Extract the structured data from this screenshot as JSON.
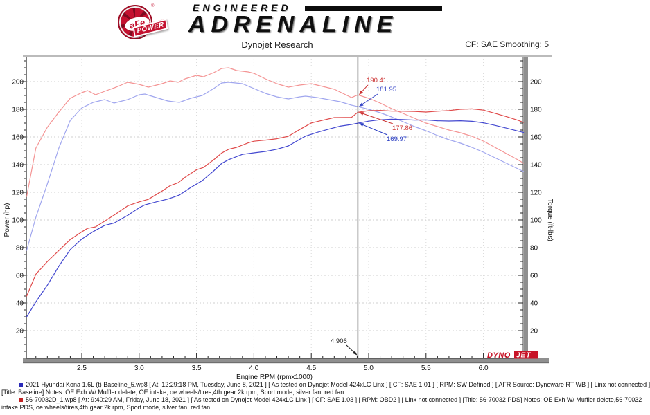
{
  "header": {
    "logo": {
      "circle_text": "aFe",
      "registered": "®",
      "banner": "POWER",
      "word1": "ENGINEERED",
      "word2": "ADRENALINE"
    },
    "report_title": "Dynojet Research",
    "cf_smoothing": "CF: SAE Smoothing: 5"
  },
  "chart_data": {
    "type": "line",
    "title": "Dynojet Research",
    "xlabel": "Engine RPM (rpmx1000)",
    "ylabel_left": "Power (hp)",
    "ylabel_right": "Torque (ft-lbs)",
    "xlim": [
      2.02,
      6.35
    ],
    "ylim": [
      0,
      217
    ],
    "x_major_ticks": [
      2.5,
      3.0,
      3.5,
      4.0,
      4.5,
      5.0,
      5.5,
      6.0
    ],
    "x_minor_step": 0.1,
    "y_major_ticks": [
      20,
      40,
      60,
      80,
      100,
      120,
      140,
      160,
      180,
      200
    ],
    "y_minor_step": 5,
    "grid": true,
    "legend_position": "none",
    "cursor": {
      "rpm": 4.906,
      "label": "4.906"
    },
    "annotations": [
      {
        "label": "190.41",
        "value": 190.41,
        "series": "torque-56-70032",
        "color": "#cc3333",
        "text_x": 529,
        "text_y": 119,
        "arrow_from": [
          531,
          123
        ]
      },
      {
        "label": "181.95",
        "value": 181.95,
        "series": "torque-baseline",
        "color": "#3a49c8",
        "text_x": 543,
        "text_y": 132,
        "arrow_from": [
          545,
          136
        ]
      },
      {
        "label": "177.86",
        "value": 177.86,
        "series": "power-56-70032",
        "color": "#cc3333",
        "text_x": 566,
        "text_y": 188,
        "arrow_from": [
          567,
          179
        ]
      },
      {
        "label": "169.97",
        "value": 169.97,
        "series": "power-baseline",
        "color": "#2438c0",
        "text_x": 558,
        "text_y": 204,
        "arrow_from": [
          559,
          195
        ]
      }
    ],
    "series": [
      {
        "name": "torque-56-70032",
        "run": "56-70032 PDS",
        "unit": "ft-lbs",
        "color": "#f49494",
        "points": [
          [
            2.02,
            117
          ],
          [
            2.1,
            152
          ],
          [
            2.2,
            167
          ],
          [
            2.3,
            178
          ],
          [
            2.4,
            188
          ],
          [
            2.5,
            192
          ],
          [
            2.55,
            193.5
          ],
          [
            2.62,
            190.5
          ],
          [
            2.7,
            193
          ],
          [
            2.8,
            196
          ],
          [
            2.9,
            199.5
          ],
          [
            3.0,
            198
          ],
          [
            3.08,
            196
          ],
          [
            3.2,
            198.5
          ],
          [
            3.27,
            200.5
          ],
          [
            3.34,
            199.5
          ],
          [
            3.4,
            202
          ],
          [
            3.5,
            204.5
          ],
          [
            3.56,
            203.5
          ],
          [
            3.65,
            206.5
          ],
          [
            3.72,
            209.5
          ],
          [
            3.78,
            210
          ],
          [
            3.85,
            208
          ],
          [
            3.95,
            207
          ],
          [
            4.0,
            206
          ],
          [
            4.1,
            202
          ],
          [
            4.2,
            198.5
          ],
          [
            4.3,
            196
          ],
          [
            4.4,
            197.5
          ],
          [
            4.5,
            198.5
          ],
          [
            4.6,
            196.5
          ],
          [
            4.7,
            194.5
          ],
          [
            4.8,
            190.5
          ],
          [
            4.85,
            188.5
          ],
          [
            4.906,
            190.41
          ],
          [
            5.0,
            188
          ],
          [
            5.1,
            184.5
          ],
          [
            5.2,
            180.5
          ],
          [
            5.3,
            177
          ],
          [
            5.4,
            173.5
          ],
          [
            5.5,
            170
          ],
          [
            5.6,
            167.5
          ],
          [
            5.7,
            165
          ],
          [
            5.8,
            163
          ],
          [
            5.9,
            160.5
          ],
          [
            6.0,
            157
          ],
          [
            6.1,
            152.5
          ],
          [
            6.2,
            148
          ],
          [
            6.3,
            143.5
          ],
          [
            6.35,
            141
          ]
        ]
      },
      {
        "name": "torque-baseline",
        "run": "Baseline",
        "unit": "ft-lbs",
        "color": "#a0a6ee",
        "points": [
          [
            2.02,
            78
          ],
          [
            2.1,
            102
          ],
          [
            2.2,
            126
          ],
          [
            2.3,
            152
          ],
          [
            2.4,
            172
          ],
          [
            2.5,
            181
          ],
          [
            2.6,
            185
          ],
          [
            2.7,
            187
          ],
          [
            2.78,
            184.5
          ],
          [
            2.9,
            187
          ],
          [
            3.0,
            190.5
          ],
          [
            3.05,
            191
          ],
          [
            3.15,
            188.5
          ],
          [
            3.25,
            186
          ],
          [
            3.35,
            185
          ],
          [
            3.45,
            188
          ],
          [
            3.55,
            190
          ],
          [
            3.65,
            195
          ],
          [
            3.72,
            199
          ],
          [
            3.78,
            199.5
          ],
          [
            3.9,
            198.5
          ],
          [
            4.0,
            195
          ],
          [
            4.1,
            191.5
          ],
          [
            4.2,
            189
          ],
          [
            4.3,
            187.5
          ],
          [
            4.4,
            189
          ],
          [
            4.45,
            189.5
          ],
          [
            4.55,
            188.5
          ],
          [
            4.65,
            187
          ],
          [
            4.75,
            185.5
          ],
          [
            4.85,
            183
          ],
          [
            4.906,
            181.95
          ],
          [
            5.0,
            180
          ],
          [
            5.1,
            177.5
          ],
          [
            5.2,
            174.5
          ],
          [
            5.3,
            171
          ],
          [
            5.4,
            167.5
          ],
          [
            5.5,
            164.5
          ],
          [
            5.6,
            161
          ],
          [
            5.7,
            158
          ],
          [
            5.8,
            155.5
          ],
          [
            5.9,
            152.5
          ],
          [
            6.0,
            149
          ],
          [
            6.1,
            145
          ],
          [
            6.2,
            141
          ],
          [
            6.3,
            137
          ],
          [
            6.35,
            135
          ]
        ]
      },
      {
        "name": "power-56-70032",
        "run": "56-70032 PDS",
        "unit": "hp",
        "color": "#e04b4b",
        "points": [
          [
            2.02,
            45
          ],
          [
            2.1,
            60.8
          ],
          [
            2.2,
            69.9
          ],
          [
            2.3,
            77.9
          ],
          [
            2.4,
            85.9
          ],
          [
            2.5,
            91.4
          ],
          [
            2.55,
            93.9
          ],
          [
            2.62,
            95
          ],
          [
            2.7,
            99.2
          ],
          [
            2.8,
            104.5
          ],
          [
            2.9,
            110.2
          ],
          [
            3.0,
            113.1
          ],
          [
            3.08,
            114.9
          ],
          [
            3.2,
            120.9
          ],
          [
            3.27,
            124.8
          ],
          [
            3.34,
            126.9
          ],
          [
            3.4,
            130.8
          ],
          [
            3.5,
            136.3
          ],
          [
            3.56,
            137.9
          ],
          [
            3.65,
            143.5
          ],
          [
            3.72,
            148.4
          ],
          [
            3.78,
            151.1
          ],
          [
            3.85,
            152.5
          ],
          [
            3.95,
            155.7
          ],
          [
            4.0,
            156.9
          ],
          [
            4.1,
            157.7
          ],
          [
            4.2,
            158.7
          ],
          [
            4.3,
            160.5
          ],
          [
            4.4,
            165.4
          ],
          [
            4.5,
            170.1
          ],
          [
            4.6,
            172.1
          ],
          [
            4.7,
            174
          ],
          [
            4.8,
            174.1
          ],
          [
            4.85,
            174.1
          ],
          [
            4.906,
            177.86
          ],
          [
            5.0,
            179
          ],
          [
            5.1,
            179.2
          ],
          [
            5.2,
            178.7
          ],
          [
            5.3,
            178.6
          ],
          [
            5.4,
            178.4
          ],
          [
            5.5,
            178
          ],
          [
            5.6,
            178.6
          ],
          [
            5.7,
            179.1
          ],
          [
            5.8,
            180
          ],
          [
            5.9,
            180.3
          ],
          [
            6.0,
            179.4
          ],
          [
            6.1,
            177.1
          ],
          [
            6.2,
            174.7
          ],
          [
            6.3,
            172.1
          ],
          [
            6.35,
            170.5
          ]
        ]
      },
      {
        "name": "power-baseline",
        "run": "Baseline",
        "unit": "hp",
        "color": "#4348d0",
        "points": [
          [
            2.02,
            30
          ],
          [
            2.1,
            40.8
          ],
          [
            2.2,
            52.8
          ],
          [
            2.3,
            66.6
          ],
          [
            2.4,
            78.6
          ],
          [
            2.5,
            86.2
          ],
          [
            2.6,
            91.6
          ],
          [
            2.7,
            96.1
          ],
          [
            2.78,
            97.7
          ],
          [
            2.9,
            103.3
          ],
          [
            3.0,
            108.8
          ],
          [
            3.05,
            110.9
          ],
          [
            3.15,
            113.1
          ],
          [
            3.25,
            115.1
          ],
          [
            3.35,
            118
          ],
          [
            3.45,
            123.5
          ],
          [
            3.55,
            128.4
          ],
          [
            3.65,
            135.5
          ],
          [
            3.72,
            140.9
          ],
          [
            3.78,
            143.6
          ],
          [
            3.9,
            147.4
          ],
          [
            4.0,
            148.5
          ],
          [
            4.1,
            149.5
          ],
          [
            4.2,
            151.1
          ],
          [
            4.3,
            153.5
          ],
          [
            4.4,
            158.3
          ],
          [
            4.45,
            160.6
          ],
          [
            4.55,
            163.3
          ],
          [
            4.65,
            165.6
          ],
          [
            4.75,
            167.8
          ],
          [
            4.85,
            169
          ],
          [
            4.906,
            169.97
          ],
          [
            5.0,
            171.4
          ],
          [
            5.1,
            172.4
          ],
          [
            5.2,
            172.8
          ],
          [
            5.3,
            172.6
          ],
          [
            5.4,
            172.2
          ],
          [
            5.5,
            172.3
          ],
          [
            5.6,
            171.7
          ],
          [
            5.7,
            171.5
          ],
          [
            5.8,
            171.7
          ],
          [
            5.9,
            171.3
          ],
          [
            6.0,
            170.2
          ],
          [
            6.1,
            168.4
          ],
          [
            6.2,
            166.4
          ],
          [
            6.3,
            164.3
          ],
          [
            6.35,
            163.2
          ]
        ]
      }
    ],
    "watermark": {
      "brand_left": "DYNO",
      "brand_right": "JET",
      "color": "#c81428"
    }
  },
  "footer": {
    "runs": [
      {
        "bullet_color": "#2a2ab8",
        "lines": [
          "2021 Hyundai Kona 1.6L (t) Baseline_5.wp8 [ At: 12:29:18 PM, Tuesday, June 8, 2021 ] [ As tested on Dynojet Model 424xLC Linx ] [ CF: SAE 1.01 ] [ RPM: SW Defined ] [ AFR Source: Dynoware RT WB ] [ Linx not connected ]",
          "[Title: Baseline]  Notes: OE Exh W/ Muffler delete, OE intake, oe wheels/tires,4th gear 2k rpm, Sport mode, silver fan, red fan"
        ]
      },
      {
        "bullet_color": "#c22222",
        "lines": [
          "56-70032D_1.wp8 [ At: 9:40:29 AM, Friday, June 18, 2021 ] [ As tested on Dynojet Model 424xLC Linx ] [ CF: SAE 1.03 ] [ RPM: OBD2 ] [ Linx not connected ] [Title: 56-70032 PDS]  Notes: OE Exh W/ Muffler delete,56-70032",
          "intake PDS, oe wheels/tires,4th gear 2k rpm, Sport mode, silver fan, red fan"
        ]
      }
    ]
  }
}
